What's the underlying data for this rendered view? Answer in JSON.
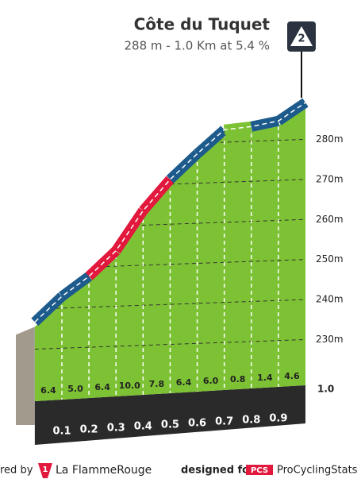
{
  "chart_data": {
    "type": "profile",
    "title": "Côte du Tuquet",
    "subtitle": "288 m - 1.0 Km at 5.4 %",
    "category": "2",
    "x": [
      0,
      0.1,
      0.2,
      0.3,
      0.4,
      0.5,
      0.6,
      0.7,
      0.8,
      0.9,
      1.0
    ],
    "values": [
      233.2,
      239.6,
      244.6,
      251.0,
      261.0,
      268.8,
      275.2,
      281.2,
      282.0,
      283.4,
      288.0
    ],
    "xlim": [
      -0.07,
      1.0
    ],
    "xticks": [
      0.1,
      0.2,
      0.3,
      0.4,
      0.5,
      0.6,
      0.7,
      0.8,
      0.9,
      {
        "value": 1.0,
        "label": "1.0"
      }
    ],
    "ylim": [
      218,
      290
    ],
    "yticks": [
      {
        "value": 230,
        "label": "230m"
      },
      {
        "value": 240,
        "label": "240m"
      },
      {
        "value": 250,
        "label": "250m"
      },
      {
        "value": 260,
        "label": "260m"
      },
      {
        "value": 270,
        "label": "270m"
      },
      {
        "value": 280,
        "label": "280m"
      }
    ],
    "grid": true,
    "color": "#7dc234",
    "segments": {
      "values": [
        6.4,
        5.0,
        6.4,
        10.0,
        7.8,
        6.4,
        6.0,
        0.8,
        1.4,
        4.6
      ],
      "value_labels": [
        "6.4",
        "5.0",
        "6.4",
        "10.0",
        "7.8",
        "6.4",
        "6.0",
        "0.8",
        "1.4",
        "4.6"
      ],
      "colors": [
        "#1d5b8c",
        "#1d5b8c",
        "#e2183c",
        "#e2183c",
        "#e2183c",
        "#1d5b8c",
        "#1d5b8c",
        "#7dc234",
        "#1d5b8c",
        "#1d5b8c"
      ]
    }
  },
  "footer": {
    "powered": "red by",
    "logo_mark": "1",
    "brand": "La FlammeRouge",
    "designed": "designed for",
    "pcs": "PCS",
    "site": "ProCyclingStats"
  }
}
